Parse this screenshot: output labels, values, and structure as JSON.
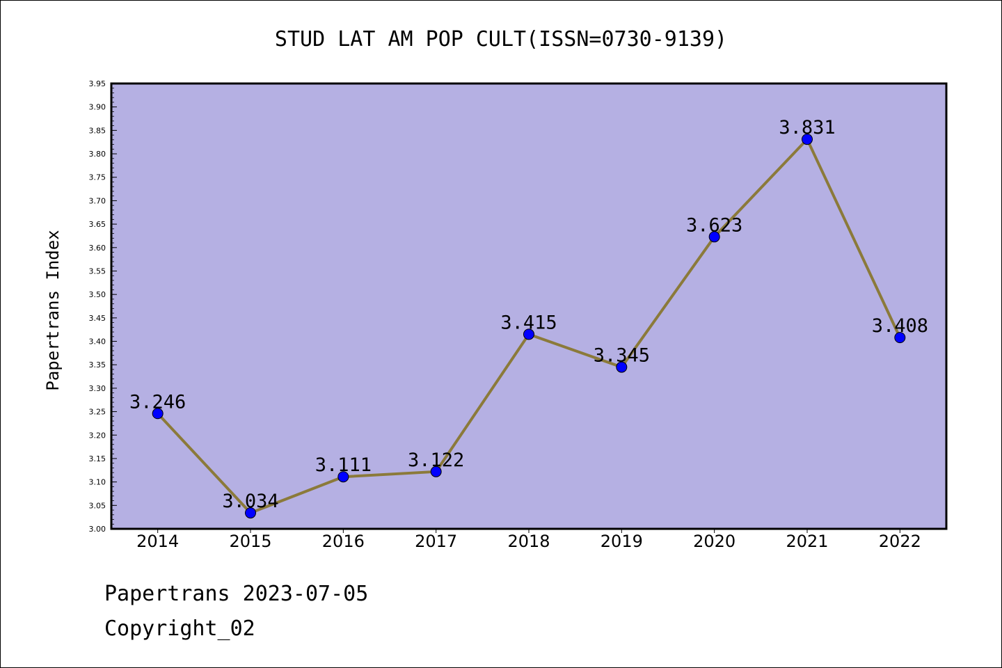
{
  "chart_data": {
    "type": "line",
    "title": "STUD LAT AM POP CULT(ISSN=0730-9139)",
    "ylabel": "Papertrans Index",
    "xlabel": "",
    "categories": [
      "2014",
      "2015",
      "2016",
      "2017",
      "2018",
      "2019",
      "2020",
      "2021",
      "2022"
    ],
    "series": [
      {
        "values": [
          3.246,
          3.034,
          3.111,
          3.122,
          3.415,
          3.345,
          3.623,
          3.831,
          3.408
        ],
        "labels": [
          "3.246",
          "3.034",
          "3.111",
          "3.122",
          "3.415",
          "3.345",
          "3.623",
          "3.831",
          "3.408"
        ]
      }
    ],
    "ylim": [
      3.0,
      3.95
    ],
    "yticks": [
      "3.00",
      "3.05",
      "3.10",
      "3.15",
      "3.20",
      "3.25",
      "3.30",
      "3.35",
      "3.40",
      "3.45",
      "3.50",
      "3.55",
      "3.60",
      "3.65",
      "3.70",
      "3.75",
      "3.80",
      "3.85",
      "3.90",
      "3.95"
    ],
    "grid": false,
    "colors": {
      "plot_background": "#b5b0e3",
      "line": "#8b7a3a",
      "marker": "#0000ff"
    }
  },
  "footer": {
    "line1": "Papertrans 2023-07-05",
    "line2": "Copyright_02"
  }
}
